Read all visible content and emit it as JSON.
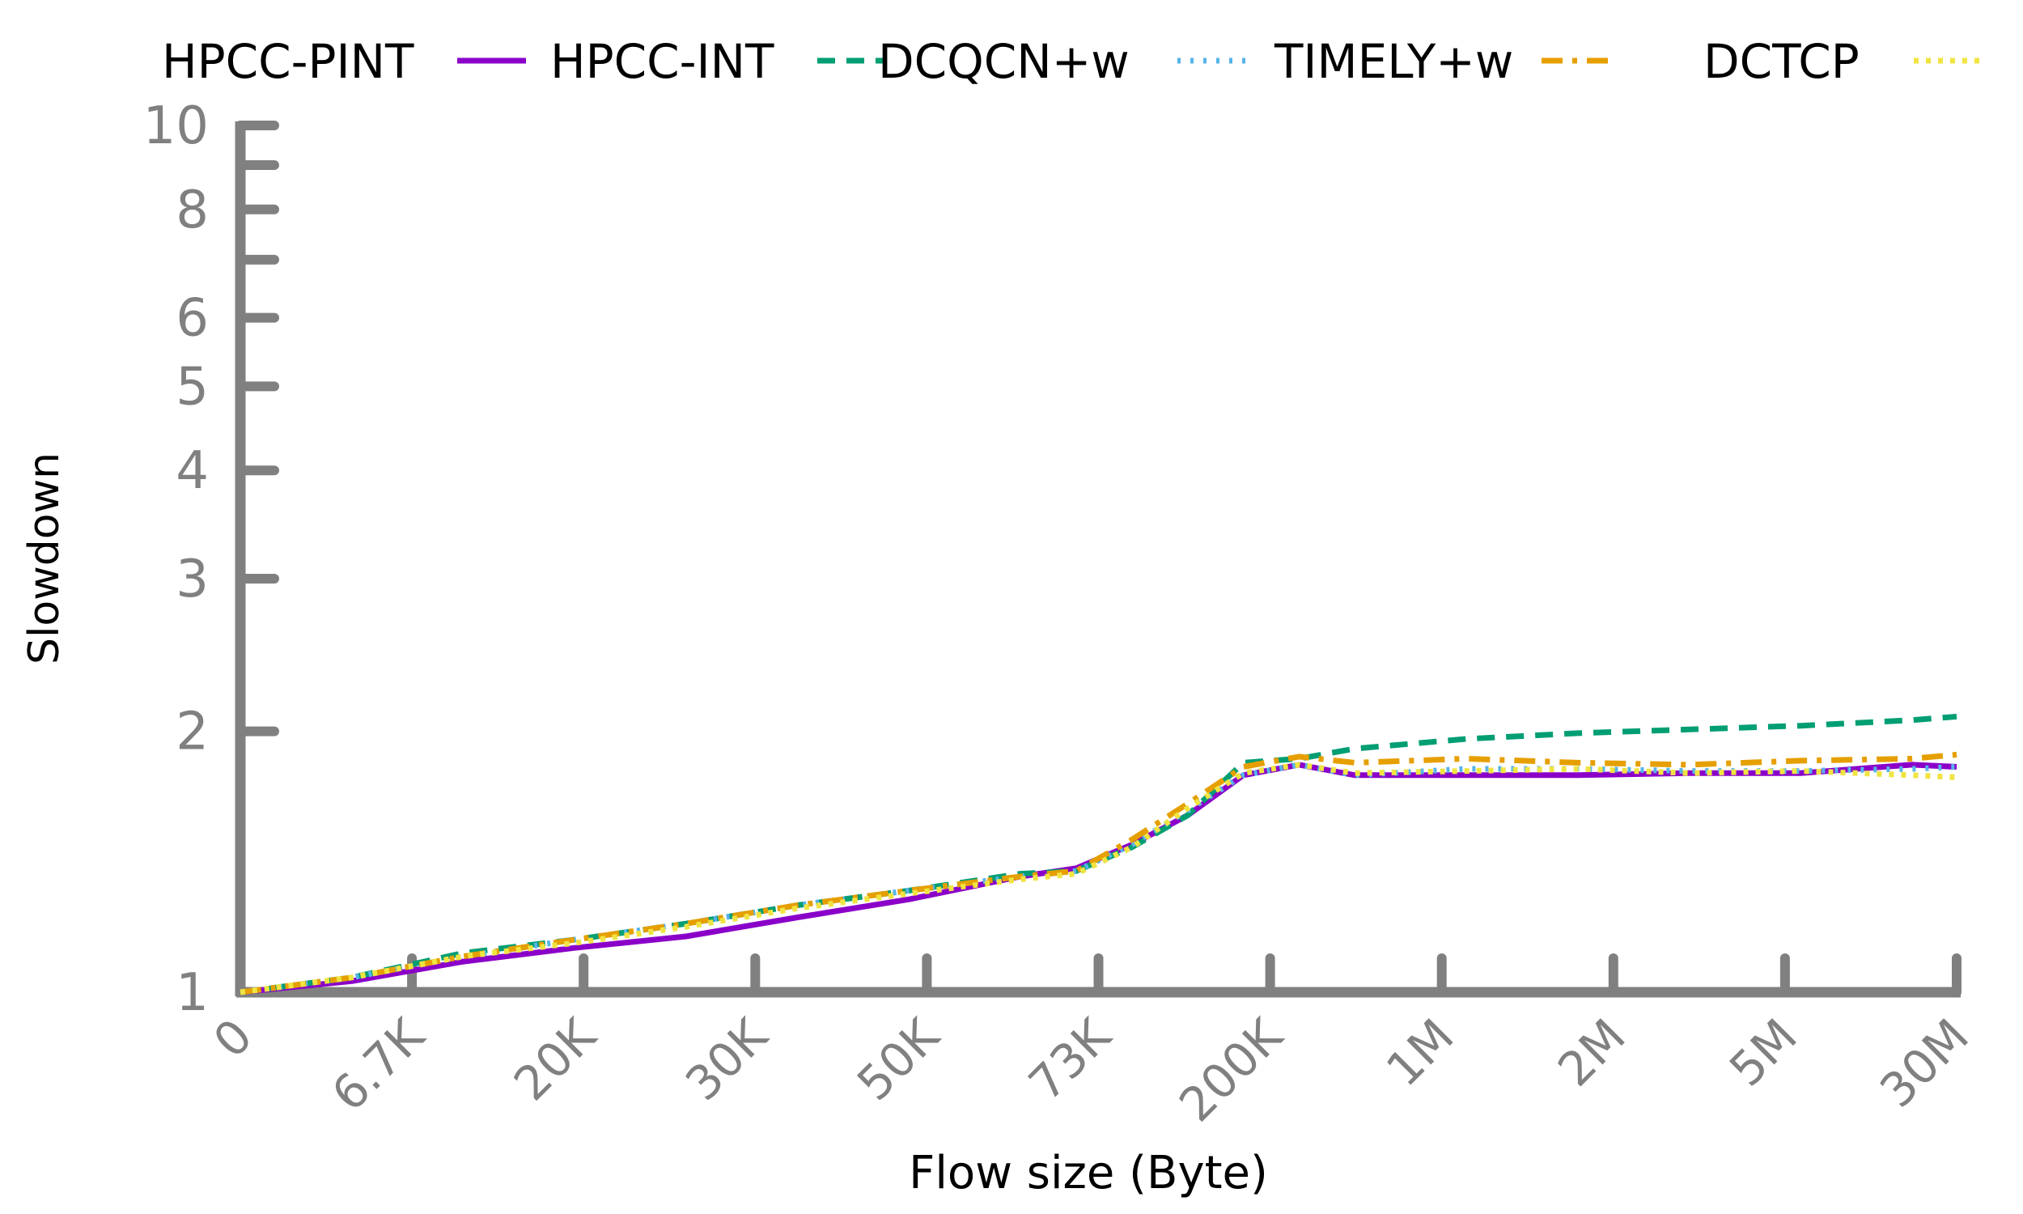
{
  "chart_data": {
    "type": "line",
    "xlabel": "Flow size (Byte)",
    "ylabel": "Slowdown",
    "yscale": "log",
    "ylim": [
      1,
      10
    ],
    "yticks": [
      {
        "value": 1,
        "label": "1"
      },
      {
        "value": 2,
        "label": "2"
      },
      {
        "value": 3,
        "label": "3"
      },
      {
        "value": 4,
        "label": "4"
      },
      {
        "value": 5,
        "label": "5"
      },
      {
        "value": 6,
        "label": "6"
      },
      {
        "value": 7,
        "label": ""
      },
      {
        "value": 8,
        "label": "8"
      },
      {
        "value": 9,
        "label": ""
      },
      {
        "value": 10,
        "label": "10"
      }
    ],
    "xtick_labels": [
      "0",
      "6.7K",
      "20K",
      "30K",
      "50K",
      "73K",
      "200K",
      "1M",
      "2M",
      "5M",
      "30M"
    ],
    "x_scale": "percentile positions matching tick labels",
    "legend_position": "top",
    "legend_entries": [
      "HPCC-PINT",
      "HPCC-INT",
      "DCQCN+w",
      "TIMELY+w",
      "DCTCP"
    ],
    "series": [
      {
        "name": "HPCC-PINT",
        "color": "#8B00C9",
        "dash": "solid",
        "points": [
          [
            0.0,
            1.0
          ],
          [
            1.0,
            1.03
          ],
          [
            2.0,
            1.085
          ],
          [
            3.0,
            1.125
          ],
          [
            4.0,
            1.16
          ],
          [
            5.0,
            1.22
          ],
          [
            6.0,
            1.28
          ],
          [
            7.0,
            1.36
          ],
          [
            7.5,
            1.39
          ],
          [
            8.0,
            1.48
          ],
          [
            8.5,
            1.6
          ],
          [
            9.0,
            1.78
          ],
          [
            9.5,
            1.83
          ],
          [
            10.0,
            1.78
          ],
          [
            11.0,
            1.78
          ],
          [
            12.0,
            1.78
          ],
          [
            13.0,
            1.79
          ],
          [
            14.0,
            1.79
          ],
          [
            15.0,
            1.83
          ],
          [
            15.4,
            1.82
          ]
        ]
      },
      {
        "name": "HPCC-INT",
        "color": "#009E73",
        "dash": "dashed",
        "points": [
          [
            0.0,
            1.0
          ],
          [
            1.0,
            1.04
          ],
          [
            2.0,
            1.11
          ],
          [
            3.0,
            1.15
          ],
          [
            4.0,
            1.2
          ],
          [
            5.0,
            1.26
          ],
          [
            6.0,
            1.31
          ],
          [
            7.0,
            1.37
          ],
          [
            7.5,
            1.38
          ],
          [
            8.0,
            1.47
          ],
          [
            8.5,
            1.6
          ],
          [
            9.0,
            1.84
          ],
          [
            9.5,
            1.86
          ],
          [
            10.0,
            1.91
          ],
          [
            11.0,
            1.96
          ],
          [
            12.0,
            1.99
          ],
          [
            13.0,
            2.01
          ],
          [
            14.0,
            2.03
          ],
          [
            15.0,
            2.06
          ],
          [
            15.4,
            2.08
          ]
        ]
      },
      {
        "name": "DCQCN+w",
        "color": "#56B4E9",
        "dash": "dotted",
        "points": [
          [
            0.0,
            1.0
          ],
          [
            1.0,
            1.04
          ],
          [
            2.0,
            1.1
          ],
          [
            3.0,
            1.15
          ],
          [
            4.0,
            1.2
          ],
          [
            5.0,
            1.26
          ],
          [
            6.0,
            1.31
          ],
          [
            7.0,
            1.36
          ],
          [
            7.5,
            1.38
          ],
          [
            8.0,
            1.48
          ],
          [
            8.5,
            1.62
          ],
          [
            9.0,
            1.78
          ],
          [
            9.5,
            1.83
          ],
          [
            10.0,
            1.78
          ],
          [
            11.0,
            1.81
          ],
          [
            12.0,
            1.81
          ],
          [
            13.0,
            1.8
          ],
          [
            14.0,
            1.8
          ],
          [
            15.0,
            1.81
          ],
          [
            15.4,
            1.82
          ]
        ]
      },
      {
        "name": "TIMELY+w",
        "color": "#E69F00",
        "dash": "dashdot",
        "points": [
          [
            0.0,
            1.0
          ],
          [
            1.0,
            1.04
          ],
          [
            2.0,
            1.1
          ],
          [
            3.0,
            1.15
          ],
          [
            4.0,
            1.2
          ],
          [
            5.0,
            1.26
          ],
          [
            6.0,
            1.31
          ],
          [
            7.0,
            1.36
          ],
          [
            7.5,
            1.38
          ],
          [
            8.0,
            1.5
          ],
          [
            8.5,
            1.65
          ],
          [
            9.0,
            1.82
          ],
          [
            9.5,
            1.87
          ],
          [
            10.0,
            1.84
          ],
          [
            11.0,
            1.86
          ],
          [
            12.0,
            1.84
          ],
          [
            13.0,
            1.83
          ],
          [
            14.0,
            1.85
          ],
          [
            15.0,
            1.86
          ],
          [
            15.4,
            1.88
          ]
        ]
      },
      {
        "name": "DCTCP",
        "color": "#F0E442",
        "dash": "densedot",
        "points": [
          [
            0.0,
            1.0
          ],
          [
            1.0,
            1.04
          ],
          [
            2.0,
            1.1
          ],
          [
            3.0,
            1.14
          ],
          [
            4.0,
            1.19
          ],
          [
            5.0,
            1.25
          ],
          [
            6.0,
            1.3
          ],
          [
            7.0,
            1.35
          ],
          [
            7.5,
            1.37
          ],
          [
            8.0,
            1.47
          ],
          [
            8.5,
            1.63
          ],
          [
            9.0,
            1.79
          ],
          [
            9.5,
            1.83
          ],
          [
            10.0,
            1.79
          ],
          [
            11.0,
            1.8
          ],
          [
            12.0,
            1.81
          ],
          [
            13.0,
            1.79
          ],
          [
            14.0,
            1.8
          ],
          [
            15.0,
            1.78
          ],
          [
            15.4,
            1.77
          ]
        ]
      }
    ]
  }
}
